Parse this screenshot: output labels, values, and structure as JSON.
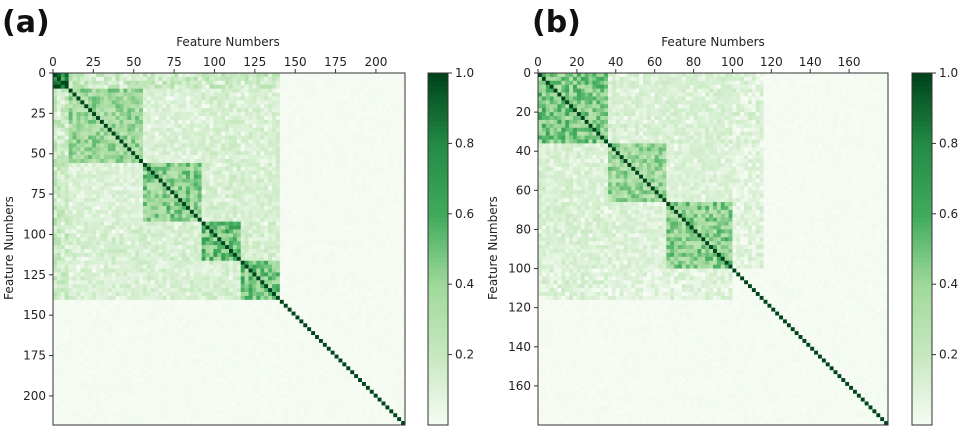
{
  "colors": {
    "cmap_low": "#f7fcf5",
    "cmap_high": "#00441b",
    "cmap_name": "Greens"
  },
  "chart_data": [
    {
      "panel": "(a)",
      "type": "heatmap",
      "xlabel": "Feature Numbers",
      "ylabel": "Feature Numbers",
      "n_features": 218,
      "x_ticks": [
        0,
        25,
        50,
        75,
        100,
        125,
        150,
        175,
        200
      ],
      "y_ticks": [
        0,
        25,
        50,
        75,
        100,
        125,
        150,
        175,
        200
      ],
      "xaxis_position": "top",
      "colorbar": {
        "range": [
          0,
          1.0
        ],
        "ticks": [
          "0.2",
          "0.4",
          "0.6",
          "0.8",
          "1.0"
        ]
      },
      "diagonal_value": 1.0,
      "description_blocks": [
        {
          "start": 0,
          "end": 8,
          "value": 0.95
        },
        {
          "start": 8,
          "end": 55,
          "value": 0.45
        },
        {
          "start": 55,
          "end": 90,
          "value": 0.5
        },
        {
          "start": 90,
          "end": 115,
          "value": 0.6
        },
        {
          "start": 115,
          "end": 140,
          "value": 0.55
        }
      ]
    },
    {
      "panel": "(b)",
      "type": "heatmap",
      "xlabel": "Feature Numbers",
      "ylabel": "Feature Numbers",
      "n_features": 180,
      "x_ticks": [
        0,
        20,
        40,
        60,
        80,
        100,
        120,
        140,
        160
      ],
      "y_ticks": [
        0,
        20,
        40,
        60,
        80,
        100,
        120,
        140,
        160
      ],
      "xaxis_position": "top",
      "colorbar": {
        "range": [
          0,
          1.0
        ],
        "ticks": [
          "0.2",
          "0.4",
          "0.6",
          "0.8",
          "1.0"
        ]
      },
      "diagonal_value": 1.0,
      "description_blocks": [
        {
          "start": 0,
          "end": 35,
          "value": 0.55
        },
        {
          "start": 35,
          "end": 65,
          "value": 0.45
        },
        {
          "start": 65,
          "end": 100,
          "value": 0.5
        }
      ]
    }
  ]
}
